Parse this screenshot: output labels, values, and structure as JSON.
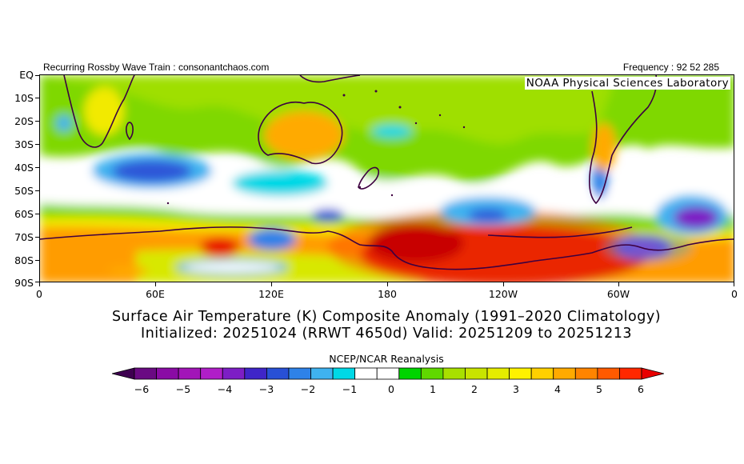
{
  "header": {
    "left_text": "Recurring Rossby Wave Train : consonantchaos.com",
    "right_text": "Frequency : 92 52 285"
  },
  "map": {
    "lab_label": "NOAA Physical Sciences Laboratory",
    "lat_labels": [
      "EQ",
      "10S",
      "20S",
      "30S",
      "40S",
      "50S",
      "60S",
      "70S",
      "80S",
      "90S"
    ],
    "lon_labels": [
      "0",
      "60E",
      "120E",
      "180",
      "120W",
      "60W",
      "0"
    ],
    "regions": [
      {
        "name": "south-indian-cold-anomaly",
        "value": -3
      },
      {
        "name": "ross-sea-antarctic-warm-anomaly",
        "value": 6
      },
      {
        "name": "weddell-sea-cold-anomaly",
        "value": -4
      },
      {
        "name": "south-atlantic-cold-anomaly",
        "value": -4
      },
      {
        "name": "east-antarctic-coast-warm-anomaly",
        "value": 5
      },
      {
        "name": "east-antarctic-interior-cold-anomaly",
        "value": -2
      }
    ]
  },
  "titles": {
    "line1": "Surface Air Temperature (K) Composite Anomaly (1991–2020 Climatology)",
    "line2": "Initialized: 20251024 (RRWT 4650d) Valid: 20251209 to 20251213"
  },
  "colorbar": {
    "title": "NCEP/NCAR Reanalysis",
    "tick_labels": [
      "−6",
      "−5",
      "−4",
      "−3",
      "−2",
      "−1",
      "0",
      "1",
      "2",
      "3",
      "4",
      "5",
      "6"
    ],
    "colors": [
      "#3e0050",
      "#6a0a83",
      "#8a0ba5",
      "#a215b8",
      "#b01ec8",
      "#7d1ec5",
      "#3f25c8",
      "#2850d6",
      "#2e82e8",
      "#3fb2f0",
      "#00d8e6",
      "#ffffff",
      "#ffffff",
      "#00d400",
      "#60d800",
      "#a8e000",
      "#c8e400",
      "#e5ec00",
      "#fff200",
      "#ffd000",
      "#ffaa00",
      "#ff8400",
      "#ff5a00",
      "#ff2800",
      "#e80000"
    ]
  }
}
